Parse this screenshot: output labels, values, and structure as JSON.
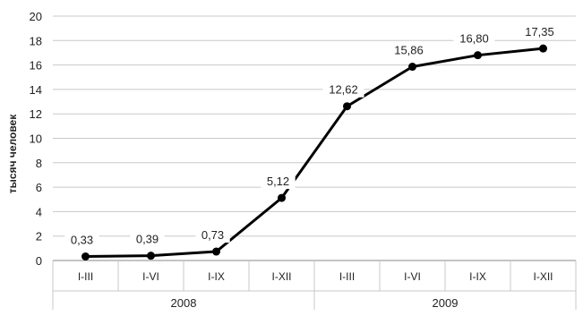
{
  "chart_data": {
    "type": "line",
    "title": "",
    "ylabel": "тысяч человек",
    "xlabel": "",
    "ylim": [
      0,
      20
    ],
    "yticks": [
      0,
      2,
      4,
      6,
      8,
      10,
      12,
      14,
      16,
      18,
      20
    ],
    "grid": true,
    "legend": "none",
    "categories": [
      "I-III",
      "I-VI",
      "I-IX",
      "I-XII",
      "I-III",
      "I-VI",
      "I-IX",
      "I-XII"
    ],
    "groups": [
      {
        "label": "2008",
        "count": 4
      },
      {
        "label": "2009",
        "count": 4
      }
    ],
    "series": [
      {
        "values": [
          0.33,
          0.39,
          0.73,
          5.12,
          12.62,
          15.86,
          16.8,
          17.35
        ],
        "labels": [
          "0,33",
          "0,39",
          "0,73",
          "5,12",
          "12,62",
          "15,86",
          "16,80",
          "17,35"
        ]
      }
    ],
    "colors": {
      "line": "#000000",
      "grid": "#c8c8c8",
      "axis": "#888888"
    }
  }
}
